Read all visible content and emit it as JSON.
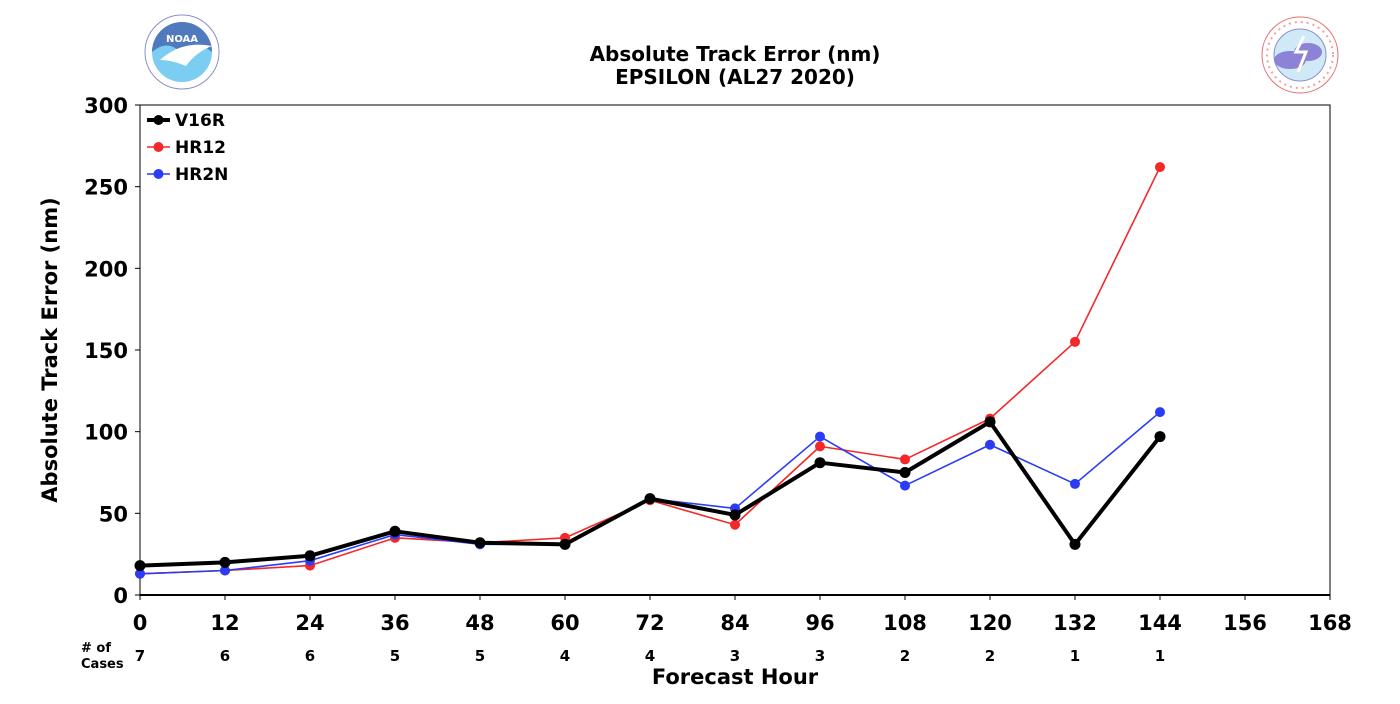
{
  "chart_data": {
    "type": "line",
    "title": "Absolute Track Error (nm)",
    "subtitle": "EPSILON (AL27 2020)",
    "xlabel": "Forecast Hour",
    "ylabel": "Absolute Track Error (nm)",
    "xlim": [
      0,
      168
    ],
    "ylim": [
      0,
      300
    ],
    "x_ticks": [
      "0",
      "12",
      "24",
      "36",
      "48",
      "60",
      "72",
      "84",
      "96",
      "108",
      "120",
      "132",
      "144",
      "156",
      "168"
    ],
    "y_ticks": [
      "0",
      "50",
      "100",
      "150",
      "200",
      "250",
      "300"
    ],
    "grid": true,
    "legend_position": "top-left",
    "cases_label": [
      "# of",
      "Cases"
    ],
    "cases": [
      {
        "x": 0,
        "n": "7"
      },
      {
        "x": 12,
        "n": "6"
      },
      {
        "x": 24,
        "n": "6"
      },
      {
        "x": 36,
        "n": "5"
      },
      {
        "x": 48,
        "n": "5"
      },
      {
        "x": 60,
        "n": "4"
      },
      {
        "x": 72,
        "n": "4"
      },
      {
        "x": 84,
        "n": "3"
      },
      {
        "x": 96,
        "n": "3"
      },
      {
        "x": 108,
        "n": "2"
      },
      {
        "x": 120,
        "n": "2"
      },
      {
        "x": 132,
        "n": "1"
      },
      {
        "x": 144,
        "n": "1"
      }
    ],
    "series": [
      {
        "name": "V16R",
        "color": "#000000",
        "emphasis": "thick",
        "x": [
          0,
          12,
          24,
          36,
          48,
          60,
          72,
          84,
          96,
          108,
          120,
          132,
          144
        ],
        "values": [
          18,
          20,
          24,
          39,
          32,
          31,
          59,
          49,
          81,
          75,
          106,
          31,
          97
        ]
      },
      {
        "name": "HR12",
        "color": "#f42828",
        "emphasis": "thin",
        "x": [
          0,
          12,
          24,
          36,
          48,
          60,
          72,
          84,
          96,
          108,
          120,
          132,
          144
        ],
        "values": [
          13,
          15,
          18,
          35,
          32,
          35,
          58,
          43,
          91,
          83,
          108,
          155,
          262
        ]
      },
      {
        "name": "HR2N",
        "color": "#2a3cf5",
        "emphasis": "thin",
        "x": [
          0,
          12,
          24,
          36,
          48,
          60,
          72,
          84,
          96,
          108,
          120,
          132,
          144
        ],
        "values": [
          13,
          15,
          21,
          37,
          31,
          31,
          59,
          53,
          97,
          67,
          92,
          68,
          112
        ]
      }
    ]
  },
  "logos": {
    "noaa": {
      "text": "NOAA",
      "ring_text": "NATIONAL OCEANIC AND ATMOSPHERIC ADMINISTRATION · U.S. DEPARTMENT OF COMMERCE"
    },
    "nws": {
      "ring_text": "NATIONAL WEATHER SERVICE"
    }
  }
}
